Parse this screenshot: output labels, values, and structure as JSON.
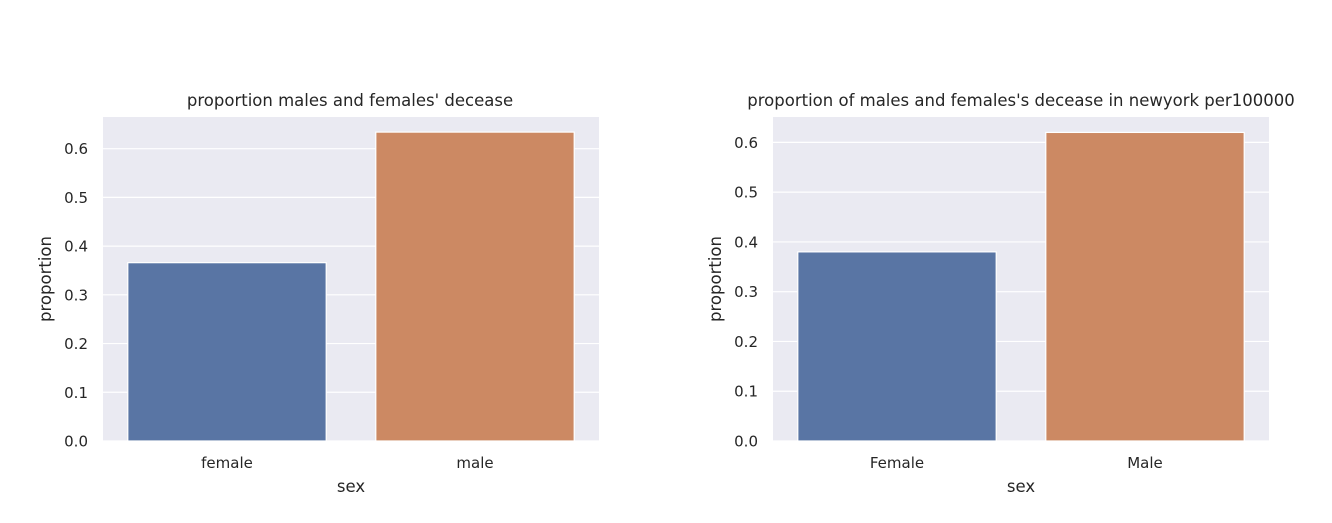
{
  "chart_data": [
    {
      "type": "bar",
      "title": "proportion males and females' decease",
      "xlabel": "sex",
      "ylabel": "proportion",
      "categories": [
        "female",
        "male"
      ],
      "values": [
        0.366,
        0.634
      ],
      "colors": [
        "#5975a4",
        "#cc8963"
      ],
      "ylim": [
        0,
        0.665
      ],
      "yticks": [
        "0.0",
        "0.1",
        "0.2",
        "0.3",
        "0.4",
        "0.5",
        "0.6"
      ],
      "grid": true,
      "background": "#eaeaf2"
    },
    {
      "type": "bar",
      "title": "proportion of males and females's decease in newyork per100000",
      "xlabel": "sex",
      "ylabel": "proportion",
      "categories": [
        "Female",
        "Male"
      ],
      "values": [
        0.38,
        0.62
      ],
      "colors": [
        "#5975a4",
        "#cc8963"
      ],
      "ylim": [
        0,
        0.651
      ],
      "yticks": [
        "0.0",
        "0.1",
        "0.2",
        "0.3",
        "0.4",
        "0.5",
        "0.6"
      ],
      "grid": true,
      "background": "#eaeaf2"
    }
  ]
}
